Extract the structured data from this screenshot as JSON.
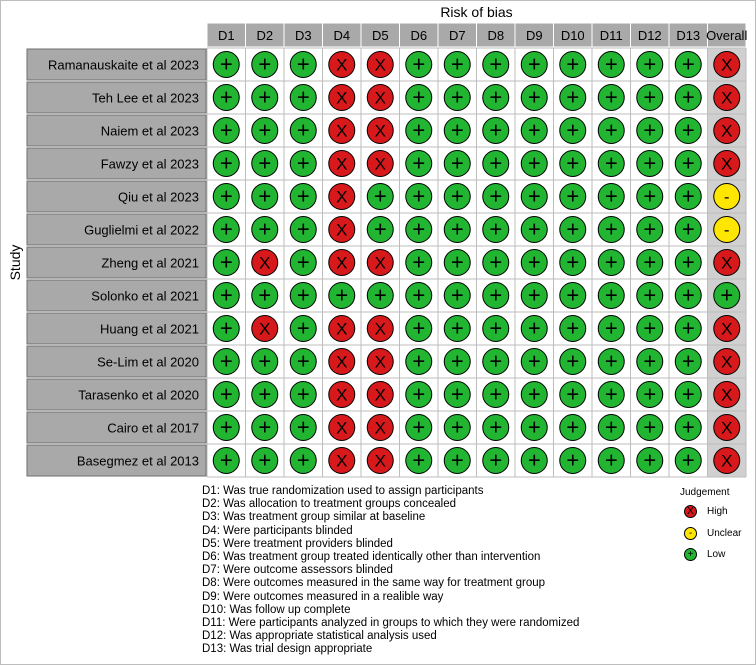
{
  "chart_data": {
    "type": "table",
    "title": "Risk of bias",
    "ylabel": "Study",
    "columns": [
      "D1",
      "D2",
      "D3",
      "D4",
      "D5",
      "D6",
      "D7",
      "D8",
      "D9",
      "D10",
      "D11",
      "D12",
      "D13",
      "Overall"
    ],
    "studies": [
      "Ramanauskaite et al 2023",
      "Teh Lee et al 2023",
      "Naiem et al 2023",
      "Fawzy et al 2023",
      "Qiu et al 2023",
      "Guglielmi et al 2022",
      "Zheng et al 2021",
      "Solonko et al 2021",
      "Huang et al 2021",
      "Se-Lim et al 2020",
      "Tarasenko et al 2020",
      "Cairo et al 2017",
      "Basegmez et al 2013"
    ],
    "judgements": [
      [
        "+",
        "+",
        "+",
        "X",
        "X",
        "+",
        "+",
        "+",
        "+",
        "+",
        "+",
        "+",
        "+",
        "X"
      ],
      [
        "+",
        "+",
        "+",
        "X",
        "X",
        "+",
        "+",
        "+",
        "+",
        "+",
        "+",
        "+",
        "+",
        "X"
      ],
      [
        "+",
        "+",
        "+",
        "X",
        "X",
        "+",
        "+",
        "+",
        "+",
        "+",
        "+",
        "+",
        "+",
        "X"
      ],
      [
        "+",
        "+",
        "+",
        "X",
        "X",
        "+",
        "+",
        "+",
        "+",
        "+",
        "+",
        "+",
        "+",
        "X"
      ],
      [
        "+",
        "+",
        "+",
        "X",
        "+",
        "+",
        "+",
        "+",
        "+",
        "+",
        "+",
        "+",
        "+",
        "-"
      ],
      [
        "+",
        "+",
        "+",
        "X",
        "+",
        "+",
        "+",
        "+",
        "+",
        "+",
        "+",
        "+",
        "+",
        "-"
      ],
      [
        "+",
        "X",
        "+",
        "X",
        "X",
        "+",
        "+",
        "+",
        "+",
        "+",
        "+",
        "+",
        "+",
        "X"
      ],
      [
        "+",
        "+",
        "+",
        "+",
        "+",
        "+",
        "+",
        "+",
        "+",
        "+",
        "+",
        "+",
        "+",
        "+"
      ],
      [
        "+",
        "X",
        "+",
        "X",
        "X",
        "+",
        "+",
        "+",
        "+",
        "+",
        "+",
        "+",
        "+",
        "X"
      ],
      [
        "+",
        "+",
        "+",
        "X",
        "X",
        "+",
        "+",
        "+",
        "+",
        "+",
        "+",
        "+",
        "+",
        "X"
      ],
      [
        "+",
        "+",
        "+",
        "X",
        "X",
        "+",
        "+",
        "+",
        "+",
        "+",
        "+",
        "+",
        "+",
        "X"
      ],
      [
        "+",
        "+",
        "+",
        "X",
        "X",
        "+",
        "+",
        "+",
        "+",
        "+",
        "+",
        "+",
        "+",
        "X"
      ],
      [
        "+",
        "+",
        "+",
        "X",
        "X",
        "+",
        "+",
        "+",
        "+",
        "+",
        "+",
        "+",
        "+",
        "X"
      ]
    ],
    "colors": {
      "high": "#d7191c",
      "unclear": "#ffe600",
      "low": "#21b532",
      "header_bg": "#a9a9a9",
      "overall_bg": "#d0d0d0"
    }
  },
  "legend": {
    "domains": [
      "D1: Was true randomization used to assign participants",
      "D2: Was allocation to treatment groups concealed",
      "D3: Was treatment group similar at baseline",
      "D4: Were participants blinded",
      "D5: Were treatment providers blinded",
      "D6: Was treatment group treated identically other than intervention",
      "D7: Were outcome assessors blinded",
      "D8: Were outcomes measured in the same way for treatment group",
      "D9: Were outcomes measured in a realible way",
      "D10: Was follow up complete",
      "D11: Were participants analyzed in groups to which they were randomized",
      "D12: Was appropriate statistical analysis used",
      "D13: Was trial design appropriate"
    ],
    "judgement_title": "Judgement",
    "items": [
      {
        "symbol": "X",
        "label": "High"
      },
      {
        "symbol": "-",
        "label": "Unclear"
      },
      {
        "symbol": "+",
        "label": "Low"
      }
    ]
  }
}
